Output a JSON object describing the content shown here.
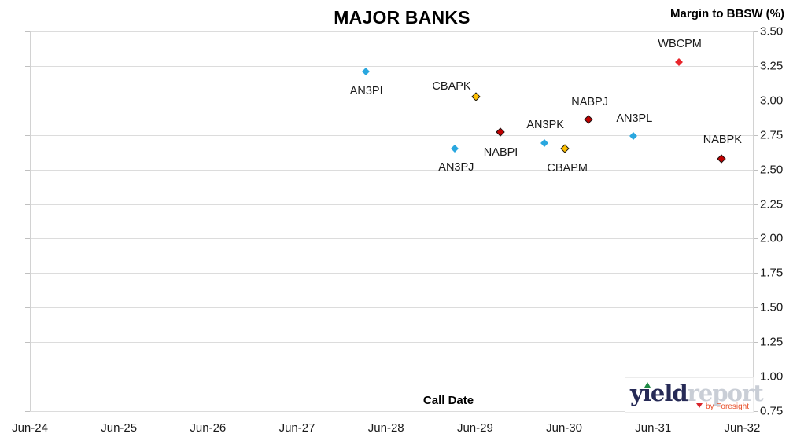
{
  "chart_data": {
    "type": "scatter",
    "title": "MAJOR BANKS",
    "xlabel": "Call Date",
    "ylabel": "Margin to BBSW (%)",
    "grid": "horizontal-only",
    "legend": "none",
    "marker_shape": "diamond",
    "xlim_years": [
      2024.5,
      2032.62
    ],
    "ylim": [
      0.75,
      3.5
    ],
    "x_ticks": [
      {
        "label": "Jun-24",
        "year": 2024.5
      },
      {
        "label": "Jun-25",
        "year": 2025.5
      },
      {
        "label": "Jun-26",
        "year": 2026.5
      },
      {
        "label": "Jun-27",
        "year": 2027.5
      },
      {
        "label": "Jun-28",
        "year": 2028.5
      },
      {
        "label": "Jun-29",
        "year": 2029.5
      },
      {
        "label": "Jun-30",
        "year": 2030.5
      },
      {
        "label": "Jun-31",
        "year": 2031.5
      },
      {
        "label": "Jun-32",
        "year": 2032.5
      }
    ],
    "y_ticks": [
      {
        "label": "3.50",
        "value": 3.5
      },
      {
        "label": "3.25",
        "value": 3.25
      },
      {
        "label": "3.00",
        "value": 3.0
      },
      {
        "label": "2.75",
        "value": 2.75
      },
      {
        "label": "2.50",
        "value": 2.5
      },
      {
        "label": "2.25",
        "value": 2.25
      },
      {
        "label": "2.00",
        "value": 2.0
      },
      {
        "label": "1.75",
        "value": 1.75
      },
      {
        "label": "1.50",
        "value": 1.5
      },
      {
        "label": "1.25",
        "value": 1.25
      },
      {
        "label": "1.00",
        "value": 1.0
      },
      {
        "label": "0.75",
        "value": 0.75
      }
    ],
    "series": [
      {
        "name": "blue-diamond-group",
        "color": "#2aa7df",
        "outline": "none",
        "points": [
          {
            "label": "AN3PI",
            "call_date_est": "Mar-28",
            "x_year": 2028.27,
            "margin_pct": 3.21,
            "label_offset": [
              1,
              25
            ]
          },
          {
            "label": "AN3PJ",
            "call_date_est": "Mar-29",
            "x_year": 2029.27,
            "margin_pct": 2.65,
            "label_offset": [
              2,
              24
            ]
          },
          {
            "label": "AN3PK",
            "call_date_est": "Mar-30",
            "x_year": 2030.28,
            "margin_pct": 2.69,
            "label_offset": [
              1,
              -23
            ]
          },
          {
            "label": "AN3PL",
            "call_date_est": "Mar-31",
            "x_year": 2031.28,
            "margin_pct": 2.74,
            "label_offset": [
              1,
              -22
            ]
          }
        ]
      },
      {
        "name": "gold-diamond-group",
        "color": "#ffc000",
        "outline": "#1a1a1a",
        "points": [
          {
            "label": "CBAPK",
            "call_date_est": "Jun-29",
            "x_year": 2029.51,
            "margin_pct": 3.03,
            "label_offset": [
              -31,
              -13
            ]
          },
          {
            "label": "CBAPM",
            "call_date_est": "Jun-30",
            "x_year": 2030.51,
            "margin_pct": 2.65,
            "label_offset": [
              3,
              25
            ]
          }
        ]
      },
      {
        "name": "dark-red-diamond-group",
        "color": "#c00000",
        "outline": "#1a1a1a",
        "points": [
          {
            "label": "NABPI",
            "call_date_est": "Sep-29",
            "x_year": 2029.78,
            "margin_pct": 2.77,
            "label_offset": [
              1,
              26
            ]
          },
          {
            "label": "NABPJ",
            "call_date_est": "Sep-30",
            "x_year": 2030.77,
            "margin_pct": 2.86,
            "label_offset": [
              2,
              -22
            ]
          },
          {
            "label": "NABPK",
            "call_date_est": "Mar-32",
            "x_year": 2032.27,
            "margin_pct": 2.58,
            "label_offset": [
              1,
              -24
            ]
          }
        ]
      },
      {
        "name": "red-diamond-group",
        "color": "#e8262c",
        "outline": "none",
        "points": [
          {
            "label": "WBCPM",
            "call_date_est": "Sep-31",
            "x_year": 2031.79,
            "margin_pct": 3.28,
            "label_offset": [
              1,
              -23
            ]
          }
        ]
      }
    ]
  },
  "watermark": {
    "brand_primary": "yield",
    "brand_secondary": "report",
    "tagline": "by Foresight",
    "colors": {
      "brand_primary": "#262a56",
      "brand_secondary": "#c9ced6",
      "tagline": "#e8502b",
      "up_arrow": "#1e8a44",
      "down_arrow": "#d8232a"
    }
  }
}
